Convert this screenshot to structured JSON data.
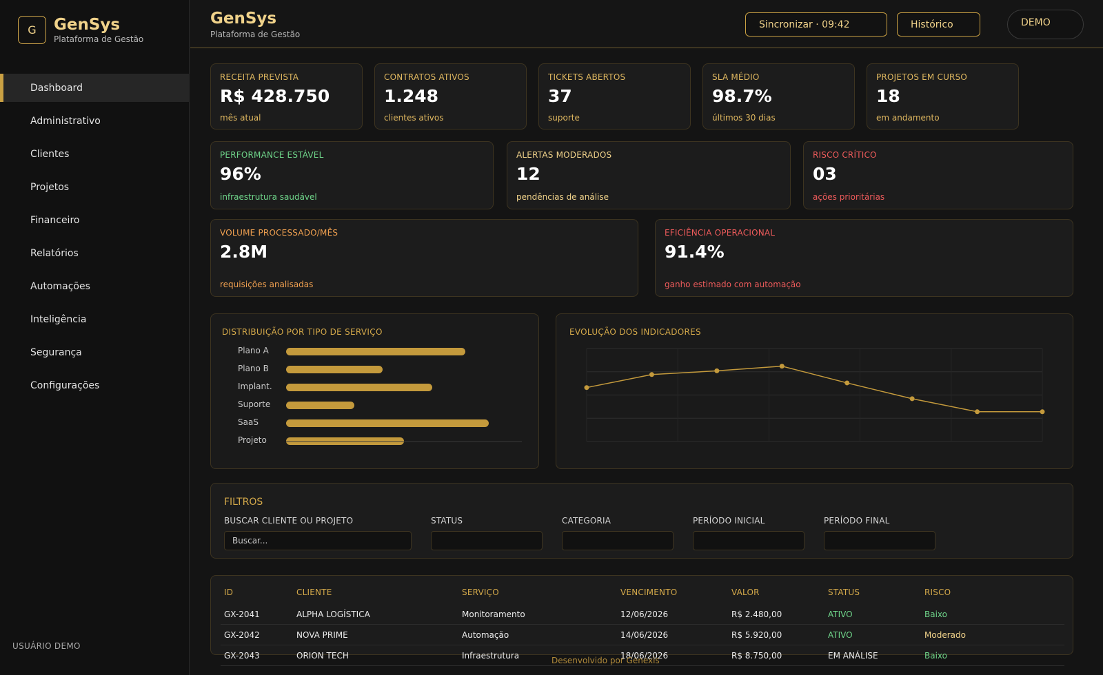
{
  "brand": {
    "logo_letter": "G",
    "name": "GenSys",
    "subtitle": "Plataforma de Gestão"
  },
  "sidebar": {
    "items": [
      {
        "label": "Dashboard",
        "active": true
      },
      {
        "label": "Administrativo"
      },
      {
        "label": "Clientes"
      },
      {
        "label": "Projetos"
      },
      {
        "label": "Financeiro"
      },
      {
        "label": "Relatórios"
      },
      {
        "label": "Automações"
      },
      {
        "label": "Inteligência"
      },
      {
        "label": "Segurança"
      },
      {
        "label": "Configurações"
      }
    ],
    "user_label": "USUÁRIO DEMO"
  },
  "header": {
    "title": "GenSys",
    "subtitle": "Plataforma de Gestão",
    "sync_button": "Sincronizar · 09:42",
    "history_button": "Histórico",
    "demo_badge": "DEMO"
  },
  "kpis": [
    {
      "label": "RECEITA PREVISTA",
      "value": "R$ 428.750",
      "sub": "mês atual"
    },
    {
      "label": "CONTRATOS ATIVOS",
      "value": "1.248",
      "sub": "clientes ativos"
    },
    {
      "label": "TICKETS ABERTOS",
      "value": "37",
      "sub": "suporte"
    },
    {
      "label": "SLA MÉDIO",
      "value": "98.7%",
      "sub": "últimos 30 dias"
    },
    {
      "label": "PROJETOS EM CURSO",
      "value": "18",
      "sub": "em andamento"
    }
  ],
  "status_cards": [
    {
      "label": "PERFORMANCE ESTÁVEL",
      "value": "96%",
      "sub": "infraestrutura saudável",
      "color": "#6fd58a"
    },
    {
      "label": "ALERTAS MODERADOS",
      "value": "12",
      "sub": "pendências de análise",
      "color": "#f0d28a"
    },
    {
      "label": "RISCO CRÍTICO",
      "value": "03",
      "sub": "ações prioritárias",
      "color": "#ee5b5b"
    }
  ],
  "wide_cards": [
    {
      "label": "VOLUME PROCESSADO/MÊS",
      "value": "2.8M",
      "sub": "requisições analisadas",
      "color": "#f0a050"
    },
    {
      "label": "EFICIÊNCIA OPERACIONAL",
      "value": "91.4%",
      "sub": "ganho estimado com automação",
      "color": "#ee5b5b"
    }
  ],
  "chart_data": [
    {
      "type": "bar",
      "title": "DISTRIBUIÇÃO POR TIPO DE SERVIÇO",
      "categories": [
        "Plano A",
        "Plano B",
        "Implant.",
        "Suporte",
        "SaaS",
        "Projeto"
      ],
      "values": [
        76,
        41,
        62,
        29,
        86,
        50
      ],
      "ylim": [
        0,
        100
      ],
      "orientation": "horizontal",
      "color": "#c49a3c"
    },
    {
      "type": "line",
      "title": "EVOLUÇÃO DOS INDICADORES",
      "x": [
        1,
        2,
        3,
        4,
        5,
        6,
        7,
        8
      ],
      "values": [
        58,
        72,
        76,
        81,
        63,
        46,
        32,
        32
      ],
      "ylim": [
        0,
        100
      ],
      "grid": true,
      "color": "#c49a3c"
    }
  ],
  "filters": {
    "title": "FILTROS",
    "search_label": "BUSCAR CLIENTE OU PROJETO",
    "search_placeholder": "Buscar...",
    "status_label": "STATUS",
    "category_label": "CATEGORIA",
    "start_label": "PERÍODO INICIAL",
    "end_label": "PERÍODO FINAL"
  },
  "table": {
    "headers": [
      "ID",
      "CLIENTE",
      "SERVIÇO",
      "VENCIMENTO",
      "VALOR",
      "STATUS",
      "RISCO"
    ],
    "rows": [
      {
        "id": "GX-2041",
        "client": "ALPHA LOGÍSTICA",
        "service": "Monitoramento",
        "due": "12/06/2026",
        "value": "R$ 2.480,00",
        "status": "ATIVO",
        "risk": "Baixo"
      },
      {
        "id": "GX-2042",
        "client": "NOVA PRIME",
        "service": "Automação",
        "due": "14/06/2026",
        "value": "R$ 5.920,00",
        "status": "ATIVO",
        "risk": "Moderado"
      },
      {
        "id": "GX-2043",
        "client": "ORION TECH",
        "service": "Infraestrutura",
        "due": "18/06/2026",
        "value": "R$ 8.750,00",
        "status": "EM ANÁLISE",
        "risk": "Baixo"
      }
    ]
  },
  "footer": "Desenvolvido por Genexis"
}
